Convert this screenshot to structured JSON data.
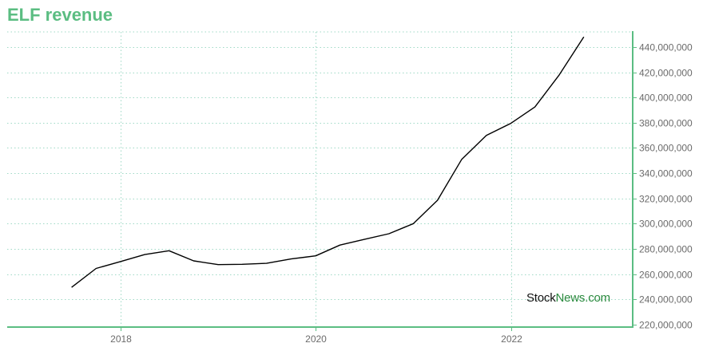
{
  "chart_data": {
    "type": "line",
    "title": "ELF revenue",
    "xlabel": "",
    "ylabel": "",
    "x_ticks": [
      "2018",
      "2020",
      "2022"
    ],
    "y_ticks": [
      {
        "value": 220000000,
        "label": "220,000,000"
      },
      {
        "value": 240000000,
        "label": "240,000,000"
      },
      {
        "value": 260000000,
        "label": "260,000,000"
      },
      {
        "value": 280000000,
        "label": "280,000,000"
      },
      {
        "value": 300000000,
        "label": "300,000,000"
      },
      {
        "value": 320000000,
        "label": "320,000,000"
      },
      {
        "value": 340000000,
        "label": "340,000,000"
      },
      {
        "value": 360000000,
        "label": "360,000,000"
      },
      {
        "value": 380000000,
        "label": "380,000,000"
      },
      {
        "value": 400000000,
        "label": "400,000,000"
      },
      {
        "value": 420000000,
        "label": "420,000,000"
      },
      {
        "value": 440000000,
        "label": "440,000,000"
      }
    ],
    "xlim": [
      "2016-11-01",
      "2023-04-01"
    ],
    "ylim": [
      218000000,
      452000000
    ],
    "grid": true,
    "line_color": "#000000",
    "series": [
      {
        "x": [
          "2017-06-30",
          "2017-09-30",
          "2017-12-31",
          "2018-03-31",
          "2018-06-30",
          "2018-09-30",
          "2018-12-31",
          "2019-03-31",
          "2019-06-30",
          "2019-09-30",
          "2019-12-31",
          "2020-03-31",
          "2020-06-30",
          "2020-09-30",
          "2020-12-31",
          "2021-03-31",
          "2021-06-30",
          "2021-09-30",
          "2021-12-31",
          "2022-03-31",
          "2022-06-30",
          "2022-09-30"
        ],
        "values": [
          249500000,
          264500000,
          270000000,
          275500000,
          278500000,
          270500000,
          267500000,
          267800000,
          268500000,
          272000000,
          274500000,
          283000000,
          287500000,
          292000000,
          300000000,
          318500000,
          351000000,
          370000000,
          379500000,
          392500000,
          418000000,
          448000000
        ]
      }
    ]
  },
  "watermark": {
    "part1": "Stock",
    "part2": "News.com"
  },
  "colors": {
    "accent": "#5bbd82",
    "grid": "#9fd9c6"
  }
}
